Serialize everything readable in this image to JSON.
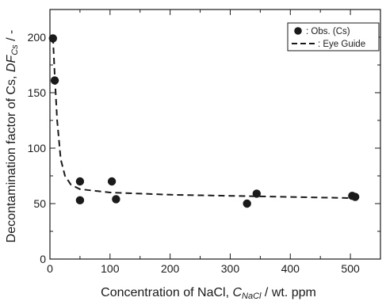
{
  "chart_data": {
    "type": "scatter",
    "xlabel_parts": {
      "prefix": "Concentration of NaCl, ",
      "symbol": "C",
      "subscript": "NaCl",
      "suffix": " / wt. ppm"
    },
    "ylabel_parts": {
      "prefix": "Decontamination factor of Cs, ",
      "symbol": "DF",
      "subscript": "Cs",
      "suffix": " / -"
    },
    "xlim": [
      0,
      550
    ],
    "ylim": [
      0,
      225
    ],
    "xticks": [
      0,
      100,
      200,
      300,
      400,
      500
    ],
    "yticks": [
      0,
      50,
      100,
      150,
      200
    ],
    "grid": false,
    "legend_position": "top-right",
    "series": [
      {
        "name": ": Obs. (Cs)",
        "kind": "markers",
        "color": "#1a1a1a",
        "x": [
          5,
          8,
          50,
          50,
          103,
          110,
          328,
          344,
          503,
          508
        ],
        "y": [
          199,
          161,
          70,
          53,
          70,
          54,
          50,
          59,
          57,
          56
        ]
      },
      {
        "name": ": Eye Guide",
        "kind": "dashed-line",
        "color": "#1a1a1a",
        "x": [
          5,
          8,
          12,
          18,
          25,
          35,
          50,
          75,
          100,
          150,
          200,
          300,
          400,
          500
        ],
        "y": [
          200,
          165,
          125,
          90,
          75,
          67,
          63,
          61.5,
          60,
          59,
          58,
          57,
          56,
          55
        ]
      }
    ]
  }
}
